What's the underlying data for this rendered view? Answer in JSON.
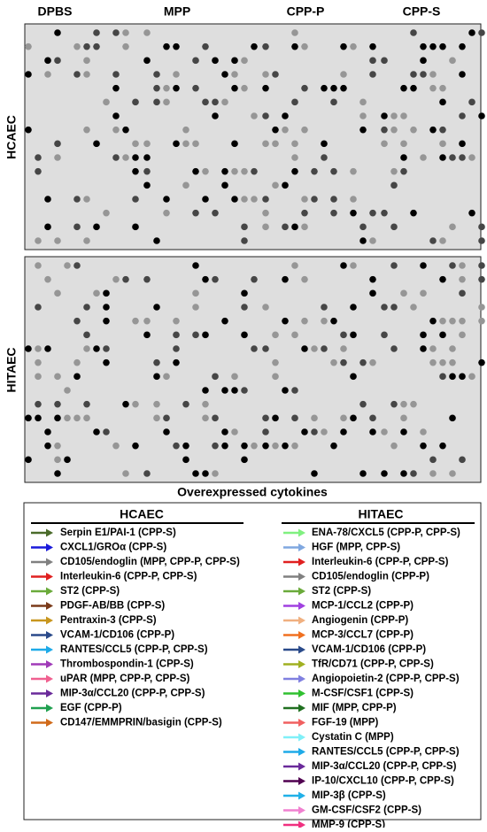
{
  "header": {
    "columns": [
      "DPBS",
      "MPP",
      "CPP-P",
      "CPP-S"
    ]
  },
  "panels": [
    {
      "label": "HCAEC"
    },
    {
      "label": "HITAEC"
    }
  ],
  "caption": "Overexpressed cytokines",
  "legend": {
    "hcaec": {
      "title": "HCAEC",
      "items": [
        {
          "label": "Serpin E1/PAI-1 (CPP-S)",
          "color": "#4a6b2a"
        },
        {
          "label": "CXCL1/GROα (CPP-S)",
          "color": "#1a1adb"
        },
        {
          "label": "CD105/endoglin (MPP, CPP-P, CPP-S)",
          "color": "#808080"
        },
        {
          "label": "Interleukin-6 (CPP-P, CPP-S)",
          "color": "#e02020"
        },
        {
          "label": "ST2 (CPP-S)",
          "color": "#6aaa3a"
        },
        {
          "label": "PDGF-AB/BB (CPP-S)",
          "color": "#7a3a1a"
        },
        {
          "label": "Pentraxin-3 (CPP-S)",
          "color": "#c8961e"
        },
        {
          "label": "VCAM-1/CD106 (CPP-P)",
          "color": "#2a4a8a"
        },
        {
          "label": "RANTES/CCL5 (CPP-P, CPP-S)",
          "color": "#1eaae8"
        },
        {
          "label": "Thrombospondin-1 (CPP-S)",
          "color": "#a03ab8"
        },
        {
          "label": "uPAR (MPP, CPP-P, CPP-S)",
          "color": "#f06090"
        },
        {
          "label": "MIP-3α/CCL20 (CPP-P, CPP-S)",
          "color": "#6a2a9a"
        },
        {
          "label": "EGF (CPP-P)",
          "color": "#20a050"
        },
        {
          "label": "CD147/EMMPRIN/basigin (CPP-S)",
          "color": "#d06a1a"
        }
      ]
    },
    "hitaec": {
      "title": "HITAEC",
      "items": [
        {
          "label": "ENA-78/CXCL5 (CPP-P, CPP-S)",
          "color": "#80f080"
        },
        {
          "label": "HGF (MPP, CPP-S)",
          "color": "#80a8e0"
        },
        {
          "label": "Interleukin-6 (CPP-P, CPP-S)",
          "color": "#e02020"
        },
        {
          "label": "CD105/endoglin (CPP-P)",
          "color": "#808080"
        },
        {
          "label": "ST2 (CPP-S)",
          "color": "#6aaa3a"
        },
        {
          "label": "MCP-1/CCL2 (CPP-P)",
          "color": "#a040e0"
        },
        {
          "label": "Angiogenin (CPP-P)",
          "color": "#f0b080"
        },
        {
          "label": "MCP-3/CCL7 (CPP-P)",
          "color": "#f07020"
        },
        {
          "label": "VCAM-1/CD106 (CPP-P)",
          "color": "#2a4a8a"
        },
        {
          "label": "TfR/CD71 (CPP-P, CPP-S)",
          "color": "#a0b020"
        },
        {
          "label": "Angiopoietin-2 (CPP-P, CPP-S)",
          "color": "#8080e0"
        },
        {
          "label": "M-CSF/CSF1 (CPP-S)",
          "color": "#30c030"
        },
        {
          "label": "MIF (MPP, CPP-P)",
          "color": "#207020"
        },
        {
          "label": "FGF-19 (MPP)",
          "color": "#f06060"
        },
        {
          "label": "Cystatin C (MPP)",
          "color": "#80f0f8"
        },
        {
          "label": "RANTES/CCL5 (CPP-P, CPP-S)",
          "color": "#1eaae8"
        },
        {
          "label": "MIP-3α/CCL20 (CPP-P, CPP-S)",
          "color": "#6a2a9a"
        },
        {
          "label": "IP-10/CXCL10 (CPP-P, CPP-S)",
          "color": "#500050"
        },
        {
          "label": "MIP-3β (CPP-S)",
          "color": "#20b0e8"
        },
        {
          "label": "GM-CSF/CSF2 (CPP-S)",
          "color": "#f080d0"
        },
        {
          "label": "MMP-9 (CPP-S)",
          "color": "#f03080"
        }
      ]
    }
  }
}
